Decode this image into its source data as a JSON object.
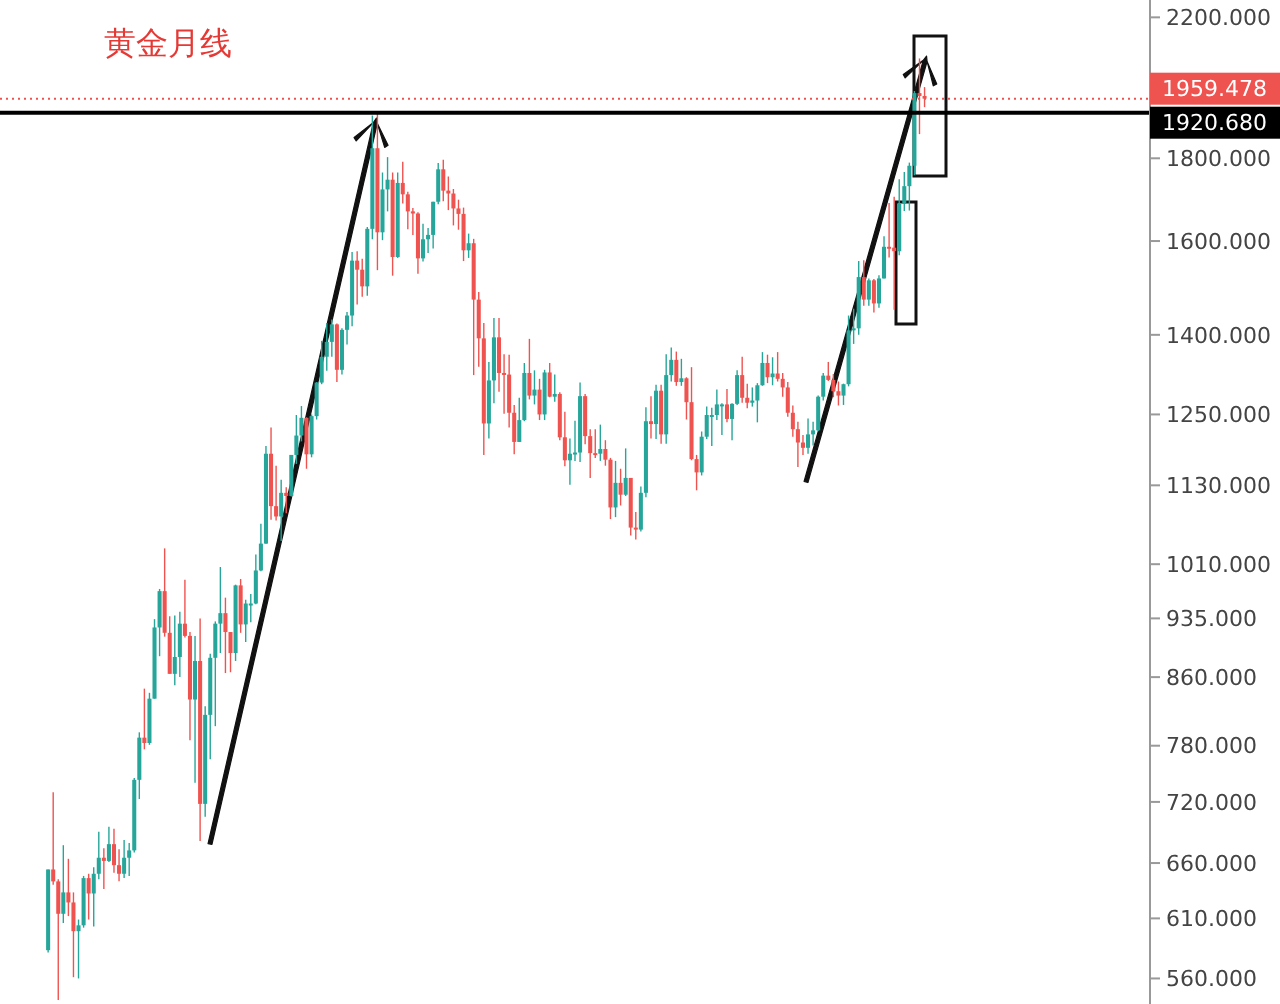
{
  "chart_data": {
    "type": "candlestick",
    "title": "黄金月线",
    "log": true,
    "ylim": [
      540,
      2255
    ],
    "yticks": [
      {
        "value": 560,
        "label": "560.000"
      },
      {
        "value": 610,
        "label": "610.000"
      },
      {
        "value": 660,
        "label": "660.000"
      },
      {
        "value": 720,
        "label": "720.000"
      },
      {
        "value": 780,
        "label": "780.000"
      },
      {
        "value": 860,
        "label": "860.000"
      },
      {
        "value": 935,
        "label": "935.000"
      },
      {
        "value": 1010,
        "label": "1010.000"
      },
      {
        "value": 1130,
        "label": "1130.000"
      },
      {
        "value": 1250,
        "label": "1250.000"
      },
      {
        "value": 1400,
        "label": "1400.000"
      },
      {
        "value": 1600,
        "label": "1600.000"
      },
      {
        "value": 1800,
        "label": "1800.000"
      },
      {
        "value": 2200,
        "label": "2200.000"
      }
    ],
    "tick_labels": "y",
    "ref_lines": [
      {
        "axis": "y",
        "value": 1920.68,
        "label": "1920.680",
        "color": "#000000",
        "line_style": "solid"
      },
      {
        "axis": "y",
        "value": 1959.478,
        "label": "1959.478",
        "color": "#ef5350",
        "line_style": "dotted"
      }
    ],
    "categories": [
      null,
      null,
      null,
      null,
      null,
      null,
      null,
      null,
      null,
      null,
      null,
      null,
      null,
      null,
      null,
      null,
      null,
      null,
      null,
      null,
      null,
      null,
      null,
      null,
      null,
      null,
      null,
      null,
      null,
      null,
      null,
      null,
      null,
      null,
      null,
      null,
      null,
      null,
      null,
      null,
      null,
      null,
      null,
      null,
      null,
      null,
      null,
      null,
      null,
      null,
      null,
      null,
      null,
      null,
      null,
      null,
      null,
      null,
      null,
      null,
      null,
      null,
      null,
      null,
      null,
      null,
      null,
      null,
      null,
      null,
      null,
      null,
      null,
      null,
      null,
      null,
      null,
      null,
      null,
      null,
      null,
      null,
      null,
      null,
      null,
      null,
      null,
      null,
      null,
      null,
      null,
      null,
      null,
      null,
      null,
      null,
      null,
      null,
      null,
      null,
      null,
      null,
      null,
      null,
      null,
      null,
      null,
      null,
      null,
      null,
      null,
      null,
      null,
      null,
      null,
      null,
      null,
      null,
      null,
      null,
      null,
      null,
      null,
      null,
      null,
      null,
      null,
      null,
      null,
      null,
      null,
      null,
      null,
      null,
      null,
      null,
      null,
      null,
      null,
      null,
      null,
      null,
      null,
      null,
      null,
      null,
      null,
      null,
      null,
      null,
      null,
      null,
      null,
      null,
      null,
      null,
      null,
      null,
      null,
      null,
      null,
      null,
      null,
      null,
      null,
      null,
      null,
      null,
      null,
      null,
      null,
      null,
      null,
      null,
      null,
      null,
      null,
      null,
      null,
      null,
      null,
      null,
      null,
      null,
      null,
      null,
      null,
      null,
      null,
      null,
      null,
      null,
      null,
      null,
      null,
      null,
      null,
      null,
      null,
      null,
      null,
      null,
      null,
      null,
      null,
      null,
      null,
      null,
      null,
      null,
      null,
      null,
      null,
      null,
      null,
      null,
      null,
      null,
      null,
      null,
      null,
      null,
      null,
      null,
      null,
      null,
      null
    ],
    "ohlc": [
      null,
      null,
      null,
      null,
      null,
      null,
      null,
      null,
      null,
      [
        583,
        654,
        581,
        654
      ],
      [
        654,
        730,
        640,
        643
      ],
      [
        643,
        645,
        543,
        614
      ],
      [
        614,
        677,
        606,
        633
      ],
      [
        633,
        664,
        612,
        624
      ],
      [
        624,
        633,
        561,
        599
      ],
      [
        599,
        609,
        560,
        604
      ],
      [
        604,
        648,
        602,
        646
      ],
      [
        646,
        650,
        609,
        632
      ],
      [
        632,
        656,
        603,
        650
      ],
      [
        650,
        690,
        645,
        665
      ],
      [
        665,
        674,
        636,
        662
      ],
      [
        662,
        695,
        661,
        678
      ],
      [
        678,
        693,
        651,
        658
      ],
      [
        658,
        673,
        643,
        650
      ],
      [
        650,
        682,
        646,
        665
      ],
      [
        665,
        679,
        648,
        672
      ],
      [
        672,
        745,
        670,
        743
      ],
      [
        743,
        795,
        723,
        789
      ],
      [
        789,
        846,
        776,
        783
      ],
      [
        783,
        841,
        781,
        834
      ],
      [
        834,
        934,
        834,
        923
      ],
      [
        923,
        975,
        886,
        972
      ],
      [
        972,
        1033,
        911,
        916
      ],
      [
        916,
        938,
        864,
        864
      ],
      [
        864,
        939,
        850,
        885
      ],
      [
        885,
        944,
        860,
        928
      ],
      [
        928,
        988,
        910,
        912
      ],
      [
        912,
        917,
        786,
        833
      ],
      [
        833,
        912,
        740,
        880
      ],
      [
        880,
        935,
        681,
        718
      ],
      [
        718,
        825,
        705,
        815
      ],
      [
        815,
        889,
        765,
        884
      ],
      [
        884,
        931,
        802,
        928
      ],
      [
        928,
        1006,
        890,
        942
      ],
      [
        942,
        963,
        865,
        917
      ],
      [
        917,
        917,
        866,
        890
      ],
      [
        890,
        981,
        880,
        980
      ],
      [
        980,
        989,
        916,
        927
      ],
      [
        927,
        960,
        904,
        955
      ],
      [
        955,
        968,
        930,
        955
      ],
      [
        955,
        1024,
        954,
        1001
      ],
      [
        1001,
        1070,
        1000,
        1040
      ],
      [
        1040,
        1195,
        1040,
        1182
      ],
      [
        1182,
        1227,
        1076,
        1097
      ],
      [
        1097,
        1162,
        1075,
        1081
      ],
      [
        1081,
        1139,
        1044,
        1118
      ],
      [
        1118,
        1127,
        1086,
        1113
      ],
      [
        1113,
        1180,
        1112,
        1180
      ],
      [
        1180,
        1249,
        1165,
        1213
      ],
      [
        1213,
        1265,
        1203,
        1244
      ],
      [
        1244,
        1245,
        1157,
        1181
      ],
      [
        1181,
        1250,
        1176,
        1247
      ],
      [
        1247,
        1309,
        1241,
        1308
      ],
      [
        1308,
        1388,
        1305,
        1357
      ],
      [
        1357,
        1424,
        1330,
        1386
      ],
      [
        1386,
        1431,
        1357,
        1421
      ],
      [
        1421,
        1423,
        1309,
        1332
      ],
      [
        1332,
        1413,
        1323,
        1410
      ],
      [
        1410,
        1446,
        1381,
        1439
      ],
      [
        1439,
        1575,
        1417,
        1556
      ],
      [
        1556,
        1577,
        1462,
        1536
      ],
      [
        1536,
        1560,
        1478,
        1500
      ],
      [
        1500,
        1632,
        1480,
        1628
      ],
      [
        1628,
        1913,
        1604,
        1826
      ],
      [
        1826,
        1920.68,
        1535,
        1620
      ],
      [
        1620,
        1764,
        1602,
        1722
      ],
      [
        1722,
        1803,
        1669,
        1746
      ],
      [
        1746,
        1764,
        1523,
        1564
      ],
      [
        1564,
        1764,
        1562,
        1738
      ],
      [
        1738,
        1791,
        1688,
        1710
      ],
      [
        1710,
        1716,
        1627,
        1669
      ],
      [
        1669,
        1677,
        1614,
        1664
      ],
      [
        1664,
        1667,
        1527,
        1561
      ],
      [
        1561,
        1640,
        1554,
        1604
      ],
      [
        1604,
        1630,
        1573,
        1614
      ],
      [
        1614,
        1692,
        1583,
        1692
      ],
      [
        1692,
        1788,
        1686,
        1772
      ],
      [
        1772,
        1796,
        1693,
        1719
      ],
      [
        1719,
        1754,
        1672,
        1712
      ],
      [
        1712,
        1723,
        1636,
        1676
      ],
      [
        1676,
        1697,
        1626,
        1663
      ],
      [
        1663,
        1678,
        1555,
        1579
      ],
      [
        1579,
        1617,
        1562,
        1595
      ],
      [
        1595,
        1605,
        1322,
        1472
      ],
      [
        1472,
        1488,
        1338,
        1393
      ],
      [
        1393,
        1424,
        1180,
        1234
      ],
      [
        1234,
        1347,
        1208,
        1312
      ],
      [
        1312,
        1434,
        1270,
        1395
      ],
      [
        1395,
        1434,
        1291,
        1326
      ],
      [
        1326,
        1362,
        1251,
        1323
      ],
      [
        1323,
        1361,
        1227,
        1253
      ],
      [
        1253,
        1267,
        1181,
        1202
      ],
      [
        1202,
        1280,
        1202,
        1240
      ],
      [
        1240,
        1345,
        1238,
        1326
      ],
      [
        1326,
        1392,
        1277,
        1284
      ],
      [
        1284,
        1331,
        1268,
        1295
      ],
      [
        1295,
        1315,
        1240,
        1250
      ],
      [
        1250,
        1332,
        1240,
        1327
      ],
      [
        1327,
        1345,
        1281,
        1282
      ],
      [
        1282,
        1323,
        1273,
        1287
      ],
      [
        1287,
        1290,
        1205,
        1210
      ],
      [
        1210,
        1255,
        1161,
        1171
      ],
      [
        1171,
        1208,
        1131,
        1182
      ],
      [
        1182,
        1239,
        1170,
        1184
      ],
      [
        1184,
        1308,
        1168,
        1283
      ],
      [
        1283,
        1287,
        1198,
        1212
      ],
      [
        1212,
        1224,
        1142,
        1183
      ],
      [
        1183,
        1224,
        1175,
        1182
      ],
      [
        1182,
        1232,
        1170,
        1190
      ],
      [
        1190,
        1205,
        1162,
        1172
      ],
      [
        1172,
        1175,
        1077,
        1095
      ],
      [
        1095,
        1170,
        1080,
        1134
      ],
      [
        1134,
        1157,
        1098,
        1115
      ],
      [
        1115,
        1191,
        1113,
        1142
      ],
      [
        1142,
        1142,
        1052,
        1064
      ],
      [
        1064,
        1088,
        1046,
        1061
      ],
      [
        1061,
        1128,
        1058,
        1118
      ],
      [
        1118,
        1263,
        1111,
        1238
      ],
      [
        1238,
        1283,
        1208,
        1233
      ],
      [
        1233,
        1304,
        1207,
        1293
      ],
      [
        1293,
        1304,
        1199,
        1215
      ],
      [
        1215,
        1362,
        1199,
        1322
      ],
      [
        1322,
        1375,
        1310,
        1351
      ],
      [
        1351,
        1367,
        1302,
        1309
      ],
      [
        1309,
        1353,
        1302,
        1316
      ],
      [
        1316,
        1318,
        1241,
        1272
      ],
      [
        1272,
        1337,
        1171,
        1173
      ],
      [
        1173,
        1180,
        1122,
        1151
      ],
      [
        1151,
        1220,
        1146,
        1211
      ],
      [
        1211,
        1264,
        1207,
        1249
      ],
      [
        1249,
        1262,
        1195,
        1249
      ],
      [
        1249,
        1295,
        1240,
        1268
      ],
      [
        1268,
        1270,
        1214,
        1268
      ],
      [
        1268,
        1296,
        1236,
        1242
      ],
      [
        1242,
        1270,
        1205,
        1269
      ],
      [
        1269,
        1331,
        1267,
        1322
      ],
      [
        1322,
        1357,
        1271,
        1280
      ],
      [
        1280,
        1306,
        1261,
        1271
      ],
      [
        1271,
        1299,
        1264,
        1275
      ],
      [
        1275,
        1307,
        1236,
        1303
      ],
      [
        1303,
        1366,
        1302,
        1345
      ],
      [
        1345,
        1361,
        1307,
        1318
      ],
      [
        1318,
        1356,
        1303,
        1325
      ],
      [
        1325,
        1366,
        1310,
        1315
      ],
      [
        1315,
        1326,
        1282,
        1299
      ],
      [
        1299,
        1309,
        1246,
        1253
      ],
      [
        1253,
        1266,
        1211,
        1224
      ],
      [
        1224,
        1237,
        1160,
        1201
      ],
      [
        1201,
        1214,
        1180,
        1192
      ],
      [
        1192,
        1243,
        1182,
        1215
      ],
      [
        1215,
        1237,
        1196,
        1222
      ],
      [
        1222,
        1284,
        1221,
        1282
      ],
      [
        1282,
        1326,
        1275,
        1321
      ],
      [
        1321,
        1347,
        1311,
        1313
      ],
      [
        1313,
        1324,
        1281,
        1292
      ],
      [
        1292,
        1310,
        1266,
        1284
      ],
      [
        1284,
        1306,
        1267,
        1305
      ],
      [
        1305,
        1439,
        1301,
        1409
      ],
      [
        1409,
        1453,
        1382,
        1413
      ],
      [
        1413,
        1555,
        1400,
        1520
      ],
      [
        1520,
        1557,
        1459,
        1472
      ],
      [
        1472,
        1517,
        1459,
        1513
      ],
      [
        1513,
        1516,
        1445,
        1464
      ],
      [
        1464,
        1524,
        1455,
        1517
      ],
      [
        1517,
        1611,
        1517,
        1587
      ],
      [
        1587,
        1689,
        1563,
        1585
      ],
      [
        1585,
        1704,
        1451,
        1577
      ],
      [
        1577,
        1747,
        1568,
        1687
      ],
      [
        1687,
        1765,
        1670,
        1730
      ],
      [
        1730,
        1789,
        1671,
        1781
      ],
      [
        1781,
        1981,
        1757,
        1975
      ],
      [
        1975,
        2075,
        1863,
        1967
      ],
      [
        1967,
        1992,
        1936,
        1959.478
      ],
      null,
      null,
      null,
      null,
      null,
      null,
      null,
      null,
      null,
      null,
      null,
      null,
      null,
      null,
      null,
      null,
      null,
      null,
      null,
      null,
      null,
      null,
      null,
      null,
      null,
      null,
      null,
      null,
      null,
      null,
      null,
      null,
      null,
      null,
      null,
      null,
      null,
      null,
      null,
      null,
      null,
      null,
      null,
      null
    ],
    "colors": [
      null,
      null,
      null,
      null,
      null,
      null,
      null,
      null,
      null,
      "#26a69a",
      "#ef5350",
      "#ef5350",
      "#26a69a",
      "#ef5350",
      "#ef5350",
      "#26a69a",
      "#26a69a",
      "#ef5350",
      "#26a69a",
      "#26a69a",
      "#ef5350",
      "#26a69a",
      "#ef5350",
      "#ef5350",
      "#26a69a",
      "#26a69a",
      "#26a69a",
      "#26a69a",
      "#ef5350",
      "#26a69a",
      "#26a69a",
      "#26a69a",
      "#ef5350",
      "#ef5350",
      "#26a69a",
      "#26a69a",
      "#ef5350",
      "#ef5350",
      "#26a69a",
      "#ef5350",
      "#26a69a",
      "#26a69a",
      "#26a69a",
      "#26a69a",
      "#ef5350",
      "#ef5350",
      "#26a69a",
      "#ef5350",
      "#26a69a",
      "#26a69a",
      "#26a69a",
      "#26a69a",
      "#26a69a",
      "#ef5350",
      "#ef5350",
      "#26a69a",
      "#ef5350",
      "#26a69a",
      "#26a69a",
      "#26a69a",
      "#ef5350",
      "#26a69a",
      "#26a69a",
      "#26a69a",
      "#26a69a",
      "#26a69a",
      "#ef5350",
      "#26a69a",
      "#26a69a",
      "#26a69a",
      "#ef5350",
      "#ef5350",
      "#26a69a",
      "#26a69a",
      "#ef5350",
      "#26a69a",
      "#26a69a",
      "#ef5350",
      "#26a69a",
      "#ef5350",
      "#ef5350",
      "#ef5350",
      "#ef5350",
      "#26a69a",
      "#26a69a",
      "#26a69a",
      "#26a69a",
      "#ef5350",
      "#ef5350",
      "#ef5350",
      "#ef5350",
      "#ef5350",
      "#26a69a",
      "#ef5350",
      "#ef5350",
      "#ef5350",
      "#26a69a",
      "#26a69a",
      "#ef5350",
      "#ef5350",
      "#ef5350",
      "#ef5350",
      "#26a69a",
      "#26a69a",
      "#ef5350",
      "#26a69a",
      "#ef5350",
      "#26a69a",
      "#ef5350",
      "#26a69a",
      "#ef5350",
      "#ef5350",
      "#26a69a",
      "#26a69a",
      "#26a69a",
      "#ef5350",
      "#ef5350",
      "#ef5350",
      "#26a69a",
      "#ef5350",
      "#ef5350",
      "#26a69a",
      "#ef5350",
      "#26a69a",
      "#ef5350",
      "#ef5350",
      "#26a69a",
      "#26a69a",
      "#ef5350",
      "#26a69a",
      "#ef5350",
      "#26a69a",
      "#26a69a",
      "#ef5350",
      "#26a69a",
      "#ef5350",
      "#ef5350",
      "#ef5350",
      "#26a69a",
      "#26a69a",
      "#26a69a",
      "#26a69a",
      "#26a69a",
      "#ef5350",
      "#26a69a",
      "#26a69a",
      "#ef5350",
      "#ef5350",
      "#26a69a",
      "#26a69a",
      "#26a69a",
      "#ef5350",
      "#26a69a",
      "#ef5350",
      "#ef5350",
      "#ef5350",
      "#ef5350",
      "#ef5350",
      "#ef5350",
      "#26a69a",
      "#26a69a",
      "#26a69a",
      "#26a69a",
      "#ef5350",
      "#ef5350",
      "#ef5350",
      "#26a69a",
      "#26a69a",
      "#26a69a",
      "#26a69a",
      "#ef5350",
      "#26a69a",
      "#ef5350",
      "#26a69a",
      "#26a69a",
      "#ef5350",
      "#ef5350",
      "#26a69a",
      "#26a69a",
      "#26a69a",
      "#26a69a",
      "#ef5350",
      "#ef5350",
      null,
      null,
      null,
      null,
      null,
      null,
      null,
      null,
      null,
      null,
      null,
      null,
      null,
      null,
      null,
      null,
      null,
      null,
      null,
      null,
      null,
      null,
      null,
      null,
      null,
      null,
      null,
      null,
      null,
      null,
      null,
      null,
      null,
      null,
      null,
      null,
      null,
      null,
      null,
      null,
      null,
      null,
      null,
      null
    ]
  }
}
